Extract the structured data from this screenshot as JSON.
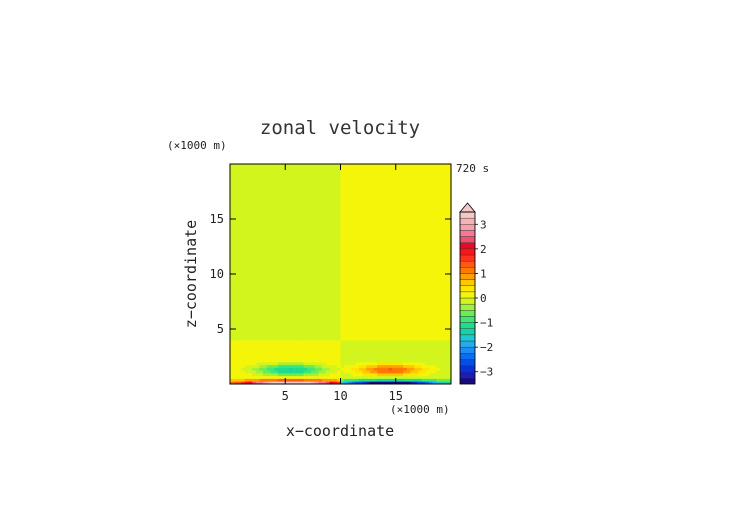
{
  "chart_data": {
    "type": "heatmap",
    "title": "zonal velocity",
    "time_label": "720 s",
    "xlabel": "x−coordinate",
    "ylabel": "z−coordinate",
    "x_unit": "(×1000 m)",
    "y_unit": "(×1000 m)",
    "xlim": [
      0,
      20
    ],
    "ylim": [
      0,
      20
    ],
    "x_ticks": [
      {
        "v": 5,
        "label": "5"
      },
      {
        "v": 10,
        "label": "10"
      },
      {
        "v": 15,
        "label": "15"
      }
    ],
    "y_ticks": [
      {
        "v": 5,
        "label": "5"
      },
      {
        "v": 10,
        "label": "10"
      },
      {
        "v": 15,
        "label": "15"
      }
    ],
    "colorbar": {
      "levels": [
        -3.5,
        -3.25,
        -3.0,
        -2.75,
        -2.5,
        -2.25,
        -2.0,
        -1.75,
        -1.5,
        -1.25,
        -1.0,
        -0.75,
        -0.5,
        -0.25,
        0.0,
        0.25,
        0.5,
        0.75,
        1.0,
        1.25,
        1.5,
        1.75,
        2.0,
        2.25,
        2.5,
        2.75,
        3.0,
        3.25,
        3.5
      ],
      "colors": [
        "#1a0a80",
        "#1a1eb4",
        "#0a32d2",
        "#0050e6",
        "#0a6ef0",
        "#1e8cf5",
        "#28aaf0",
        "#1ec8d2",
        "#14d2aa",
        "#1edc8c",
        "#3ce678",
        "#6eeb50",
        "#a0f03c",
        "#d2f51e",
        "#f5f50a",
        "#ffe600",
        "#ffc800",
        "#ffa000",
        "#ff7800",
        "#ff5a14",
        "#ff321e",
        "#ff1414",
        "#e60a28",
        "#f0506e",
        "#f57896",
        "#f5a0aa",
        "#f5b4b4",
        "#f5c8c8"
      ],
      "tick_labels": [
        {
          "v": 3,
          "label": "3"
        },
        {
          "v": 2,
          "label": "2"
        },
        {
          "v": 1,
          "label": "1"
        },
        {
          "v": 0,
          "label": "0"
        },
        {
          "v": -1,
          "label": "−1"
        },
        {
          "v": -2,
          "label": "−2"
        },
        {
          "v": -3,
          "label": "−3"
        }
      ],
      "extend": "max"
    }
  }
}
